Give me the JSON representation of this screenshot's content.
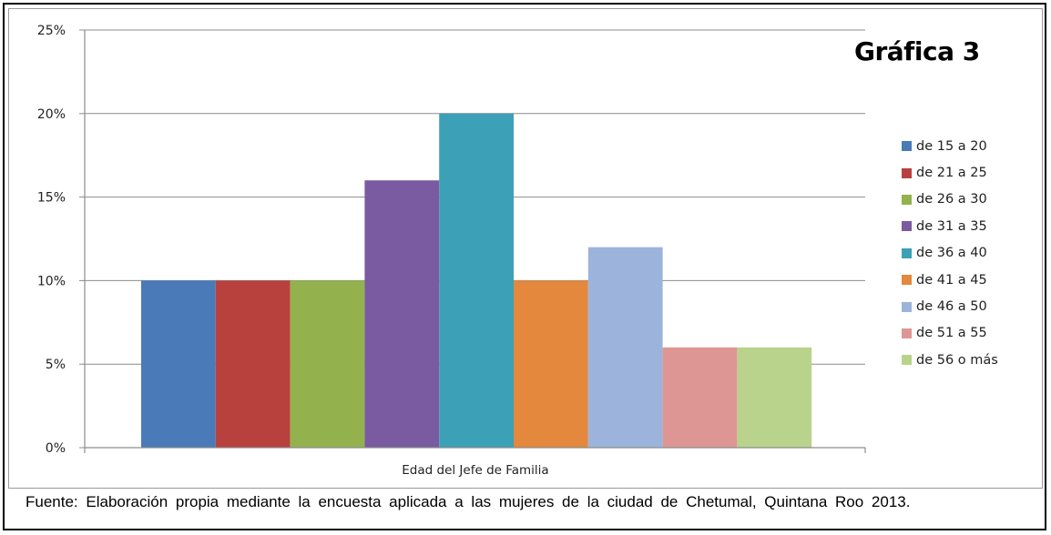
{
  "chart_data": {
    "type": "bar",
    "title": "Gráfica 3",
    "xlabel": "Edad del Jefe de Familia",
    "ylabel": "",
    "ylim": [
      0,
      25
    ],
    "yticks": [
      "0%",
      "5%",
      "10%",
      "15%",
      "20%",
      "25%"
    ],
    "ytick_values": [
      0,
      5,
      10,
      15,
      20,
      25
    ],
    "grid": true,
    "legend_position": "right",
    "categories": [
      "Edad del Jefe de Familia"
    ],
    "series": [
      {
        "name": "de 15 a 20",
        "values": [
          10
        ],
        "color": "#4a7ab8"
      },
      {
        "name": "de 21 a 25",
        "values": [
          10
        ],
        "color": "#b8413d"
      },
      {
        "name": "de 26 a 30",
        "values": [
          10
        ],
        "color": "#93b24d"
      },
      {
        "name": "de 31 a 35",
        "values": [
          16
        ],
        "color": "#7a5aa0"
      },
      {
        "name": "de 36 a 40",
        "values": [
          20
        ],
        "color": "#3ca0b6"
      },
      {
        "name": "de 41 a 45",
        "values": [
          10
        ],
        "color": "#e3883c"
      },
      {
        "name": "de 46 a 50",
        "values": [
          12
        ],
        "color": "#9cb4dc"
      },
      {
        "name": "de 51 a 55",
        "values": [
          6
        ],
        "color": "#de9694"
      },
      {
        "name": "de 56 o más",
        "values": [
          6
        ],
        "color": "#b9d38c"
      }
    ]
  },
  "source_note": "Fuente: Elaboración propia  mediante la encuesta aplicada a las mujeres de la ciudad de Chetumal, Quintana Roo 2013."
}
